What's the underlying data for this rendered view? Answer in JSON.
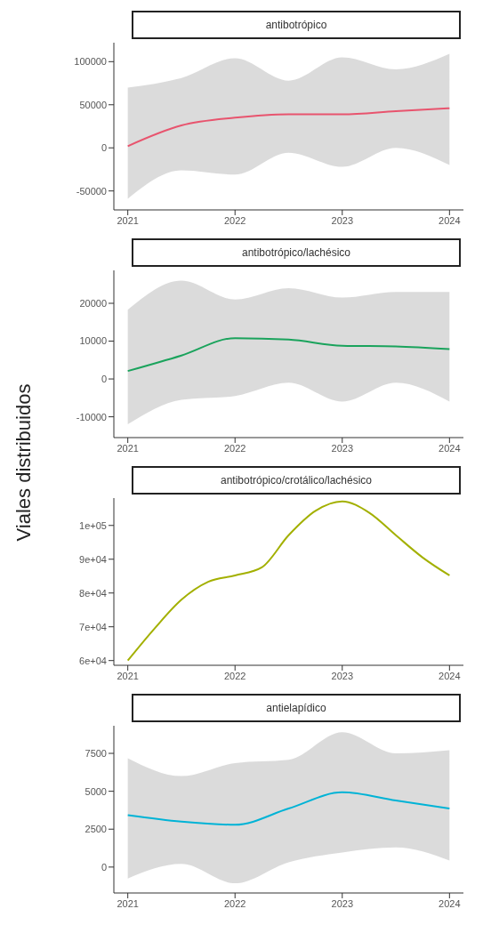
{
  "chart_data": [
    {
      "type": "line",
      "title": "antibotrópico",
      "xlim": [
        2020.87,
        2024.13
      ],
      "xticks": [
        2021,
        2022,
        2023,
        2024
      ],
      "ylim": [
        -72000,
        122000
      ],
      "yticks": [
        -50000,
        0,
        50000,
        100000
      ],
      "series": [
        {
          "color": "#e8546e",
          "x": [
            2021,
            2021.5,
            2022,
            2022.5,
            2023,
            2023.5,
            2024
          ],
          "values": [
            2000,
            26000,
            35000,
            39000,
            39000,
            42600,
            46000
          ],
          "lower": [
            -59000,
            -26000,
            -31000,
            -5600,
            -22000,
            0,
            -20000
          ],
          "upper": [
            70000,
            81000,
            104000,
            78000,
            105000,
            91000,
            109000
          ]
        }
      ]
    },
    {
      "type": "line",
      "title": "antibotrópico/lachésico",
      "ylabel": "Viales distribuidos",
      "xlim": [
        2020.87,
        2024.13
      ],
      "xticks": [
        2021,
        2022,
        2023,
        2024
      ],
      "ylim": [
        -15500,
        28700
      ],
      "yticks": [
        -10000,
        0,
        10000,
        20000
      ],
      "series": [
        {
          "color": "#1aa35c",
          "x": [
            2021,
            2021.5,
            2022,
            2022.5,
            2023,
            2023.5,
            2024
          ],
          "values": [
            2100,
            6200,
            10800,
            10400,
            8800,
            8600,
            7900
          ],
          "lower": [
            -12000,
            -5500,
            -4500,
            -1000,
            -6000,
            -1000,
            -6000
          ],
          "upper": [
            18300,
            26000,
            21000,
            24000,
            21500,
            23000,
            23000
          ]
        }
      ]
    },
    {
      "type": "line",
      "title": "antibotrópico/crotálico/lachésico",
      "xlim": [
        2020.87,
        2024.13
      ],
      "xticks": [
        2021,
        2022,
        2023,
        2024
      ],
      "ylim": [
        58600,
        108100
      ],
      "yticks": [
        {
          "value": 60000,
          "label": "6e+04"
        },
        {
          "value": 70000,
          "label": "7e+04"
        },
        {
          "value": 80000,
          "label": "8e+04"
        },
        {
          "value": 90000,
          "label": "9e+04"
        },
        {
          "value": 100000,
          "label": "1e+05"
        }
      ],
      "series": [
        {
          "color": "#a3b000",
          "x": [
            2021,
            2021.25,
            2021.5,
            2021.75,
            2022,
            2022.25,
            2022.5,
            2022.75,
            2023,
            2023.25,
            2023.5,
            2023.75,
            2024
          ],
          "values": [
            60000,
            69500,
            78000,
            83300,
            85200,
            87600,
            97100,
            104300,
            107100,
            103800,
            97100,
            90500,
            85200
          ]
        }
      ]
    },
    {
      "type": "line",
      "title": "antielapídico",
      "xlim": [
        2020.87,
        2024.13
      ],
      "xticks": [
        2021,
        2022,
        2023,
        2024
      ],
      "ylim": [
        -1710,
        9320
      ],
      "yticks": [
        0,
        2500,
        5000,
        7500
      ],
      "series": [
        {
          "color": "#00b3d6",
          "x": [
            2021,
            2021.5,
            2022,
            2022.5,
            2023,
            2023.5,
            2024
          ],
          "values": [
            3430,
            3000,
            2790,
            3860,
            4930,
            4390,
            3860
          ],
          "lower": [
            -750,
            210,
            -1070,
            320,
            960,
            1290,
            430
          ],
          "upper": [
            7180,
            6000,
            6860,
            7070,
            8890,
            7500,
            7710
          ]
        }
      ]
    }
  ]
}
